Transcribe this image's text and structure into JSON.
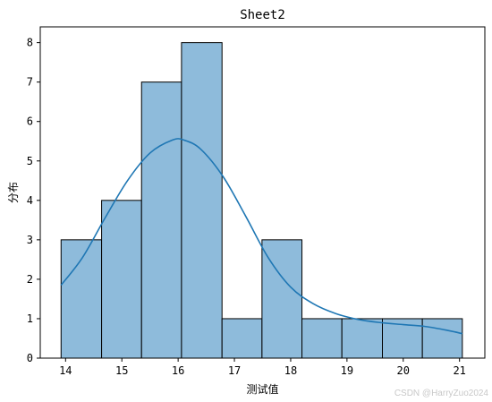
{
  "chart_data": {
    "type": "bar",
    "title": "Sheet2",
    "xlabel": "测试值",
    "ylabel": "分布",
    "xlim": [
      13.55,
      21.45
    ],
    "ylim": [
      0,
      8.4
    ],
    "xticks": [
      14,
      15,
      16,
      17,
      18,
      19,
      20,
      21
    ],
    "yticks": [
      0,
      1,
      2,
      3,
      4,
      5,
      6,
      7,
      8
    ],
    "grid": false,
    "bin_edges": [
      13.92,
      14.64,
      15.35,
      16.06,
      16.78,
      17.49,
      18.2,
      18.91,
      19.63,
      20.34,
      21.05
    ],
    "counts": [
      3,
      4,
      7,
      8,
      1,
      3,
      1,
      1,
      1,
      1
    ],
    "bar_color": "#8ebbdb",
    "edge_color": "#000000",
    "kde": {
      "color": "#1f77b4",
      "x": [
        13.92,
        14.3,
        14.7,
        15.1,
        15.5,
        15.9,
        16.1,
        16.4,
        16.8,
        17.2,
        17.6,
        18.0,
        18.4,
        18.8,
        19.2,
        19.6,
        20.0,
        20.4,
        20.8,
        21.05
      ],
      "y": [
        1.85,
        2.55,
        3.55,
        4.5,
        5.2,
        5.53,
        5.53,
        5.3,
        4.6,
        3.6,
        2.55,
        1.8,
        1.38,
        1.13,
        0.98,
        0.9,
        0.85,
        0.8,
        0.7,
        0.62
      ]
    }
  },
  "watermark": "CSDN @HarryZuo2024"
}
